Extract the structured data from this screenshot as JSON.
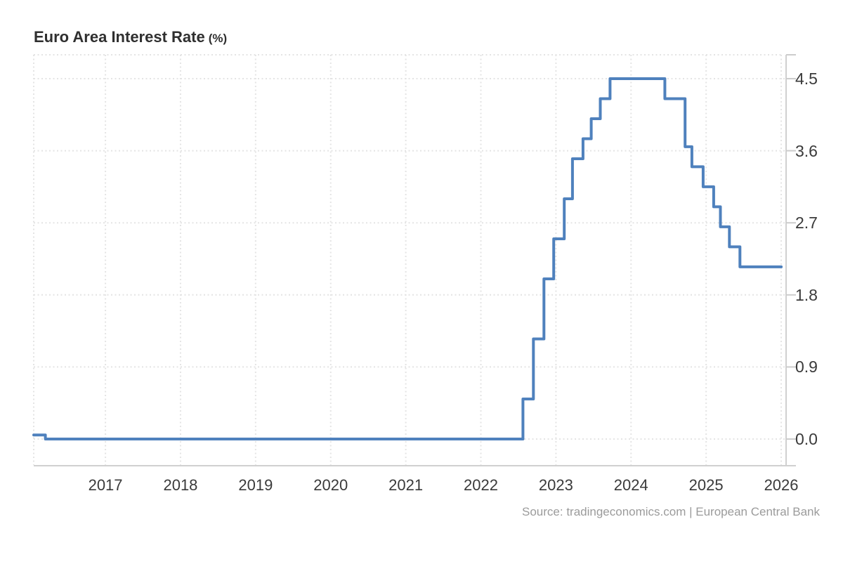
{
  "header": {
    "title": "Euro Area Interest Rate",
    "unit_suffix": "(%)"
  },
  "footer": {
    "source_text": "Source: tradingeconomics.com | European Central Bank"
  },
  "chart_data": {
    "type": "line",
    "subtype": "step-after",
    "title": "Euro Area Interest Rate (%)",
    "ylabel": "",
    "xlabel": "",
    "legend_position": "none",
    "grid": "dotted",
    "x_range": [
      2016.045,
      2026.065
    ],
    "y_range": [
      -0.333,
      4.798
    ],
    "xticks": [
      "2017",
      "2018",
      "2019",
      "2020",
      "2021",
      "2022",
      "2023",
      "2024",
      "2025",
      "2026"
    ],
    "yticks": [
      "4.5",
      "3.6",
      "2.7",
      "1.8",
      "0.9",
      "0.0"
    ],
    "colors": {
      "line": "#4f81bd",
      "grid": "#e4e4e4",
      "axis": "#d0d0d0",
      "tick": "#cccccc",
      "label": "#3a3a3a",
      "source": "#9b9b9b"
    },
    "series": [
      {
        "name": "Euro Area Interest Rate (%)",
        "points": [
          [
            2016.045,
            0.05
          ],
          [
            2016.2,
            0.0
          ],
          [
            2022.56,
            0.5
          ],
          [
            2022.7,
            1.25
          ],
          [
            2022.84,
            2.0
          ],
          [
            2022.97,
            2.5
          ],
          [
            2023.11,
            3.0
          ],
          [
            2023.22,
            3.5
          ],
          [
            2023.36,
            3.75
          ],
          [
            2023.47,
            4.0
          ],
          [
            2023.59,
            4.25
          ],
          [
            2023.72,
            4.5
          ],
          [
            2024.45,
            4.25
          ],
          [
            2024.72,
            3.65
          ],
          [
            2024.81,
            3.4
          ],
          [
            2024.96,
            3.15
          ],
          [
            2025.1,
            2.9
          ],
          [
            2025.19,
            2.65
          ],
          [
            2025.31,
            2.4
          ],
          [
            2025.45,
            2.15
          ],
          [
            2026.0,
            2.15
          ]
        ]
      }
    ]
  }
}
